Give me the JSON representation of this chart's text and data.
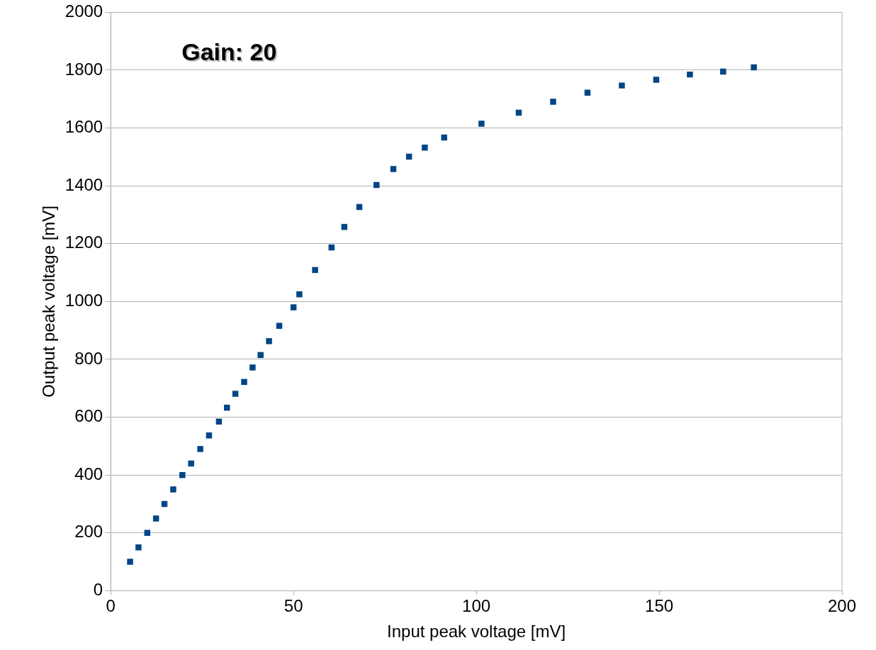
{
  "chart_data": {
    "type": "scatter",
    "xlabel": "Input peak voltage [mV]",
    "ylabel": "Output peak voltage [mV]",
    "annotations": [
      "Gain: 20"
    ],
    "x": [
      5.3,
      7.6,
      10,
      12.4,
      14.7,
      17.1,
      19.6,
      22,
      24.5,
      26.9,
      29.6,
      31.8,
      34.1,
      36.5,
      38.8,
      41,
      43.3,
      46.1,
      50,
      51.6,
      55.9,
      60.4,
      63.9,
      68,
      72.7,
      77.3,
      81.6,
      85.9,
      91.2,
      101.4,
      111.6,
      121,
      130.4,
      139.8,
      149.2,
      158.4,
      167.5,
      175.9
    ],
    "series": [
      {
        "color": "#004586",
        "values": [
          100,
          150,
          200,
          250,
          300,
          350,
          400,
          440,
          490,
          537,
          585,
          633,
          681,
          722,
          772,
          815,
          863,
          916,
          980,
          1025,
          1109,
          1187,
          1258,
          1327,
          1403,
          1458,
          1501,
          1532,
          1567,
          1615,
          1653,
          1691,
          1722,
          1747,
          1767,
          1785,
          1795,
          1810
        ]
      }
    ],
    "xlim": [
      0,
      200
    ],
    "xticks": [
      0,
      50,
      100,
      150,
      200
    ],
    "ylim": [
      0,
      2000
    ],
    "yticks": [
      0,
      200,
      400,
      600,
      800,
      1000,
      1200,
      1400,
      1600,
      1800,
      2000
    ],
    "grid": "y",
    "legend": false,
    "marker": "square"
  }
}
